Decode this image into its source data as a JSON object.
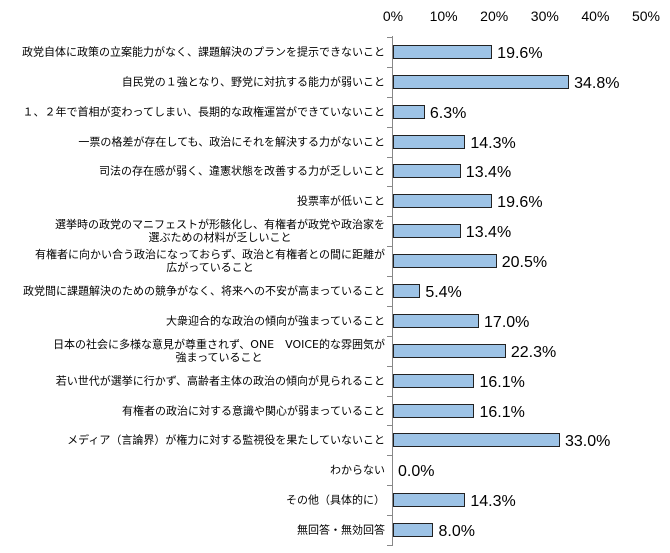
{
  "chart_data": {
    "type": "bar",
    "orientation": "horizontal",
    "title": "",
    "xlabel": "",
    "ylabel": "",
    "xlim": [
      0,
      50
    ],
    "x_tick_labels": [
      "0%",
      "10%",
      "20%",
      "30%",
      "40%",
      "50%"
    ],
    "x_ticks": [
      0,
      10,
      20,
      30,
      40,
      50
    ],
    "bar_color": "#9dc3e6",
    "categories": [
      "政党自体に政策の立案能力がなく、課題解決のプランを提示できないこと",
      "自民党の１強となり、野党に対抗する能力が弱いこと",
      "１、２年で首相が変わってしまい、長期的な政権運営ができていないこと",
      "一票の格差が存在しても、政治にそれを解決する力がないこと",
      "司法の存在感が弱く、違憲状態を改善する力が乏しいこと",
      "投票率が低いこと",
      "選挙時の政党のマニフェストが形骸化し、有権者が政党や政治家を\n選ぶための材料が乏しいこと",
      "有権者に向かい合う政治になっておらず、政治と有権者との間に距離が\n広がっていること",
      "政党間に課題解決のための競争がなく、将来への不安が高まっていること",
      "大衆迎合的な政治の傾向が強まっていること",
      "日本の社会に多様な意見が尊重されず、ONE　VOICE的な雰囲気が\n強まっていること",
      "若い世代が選挙に行かず、高齢者主体の政治の傾向が見られること",
      "有権者の政治に対する意識や関心が弱まっていること",
      "メディア（言論界）が権力に対する監視役を果たしていないこと",
      "わからない",
      "その他（具体的に）",
      "無回答・無効回答"
    ],
    "values": [
      19.6,
      34.8,
      6.3,
      14.3,
      13.4,
      19.6,
      13.4,
      20.5,
      5.4,
      17.0,
      22.3,
      16.1,
      16.1,
      33.0,
      0.0,
      14.3,
      8.0
    ],
    "data_labels": [
      "19.6%",
      "34.8%",
      "6.3%",
      "14.3%",
      "13.4%",
      "19.6%",
      "13.4%",
      "20.5%",
      "5.4%",
      "17.0%",
      "22.3%",
      "16.1%",
      "16.1%",
      "33.0%",
      "0.0%",
      "14.3%",
      "8.0%"
    ]
  }
}
